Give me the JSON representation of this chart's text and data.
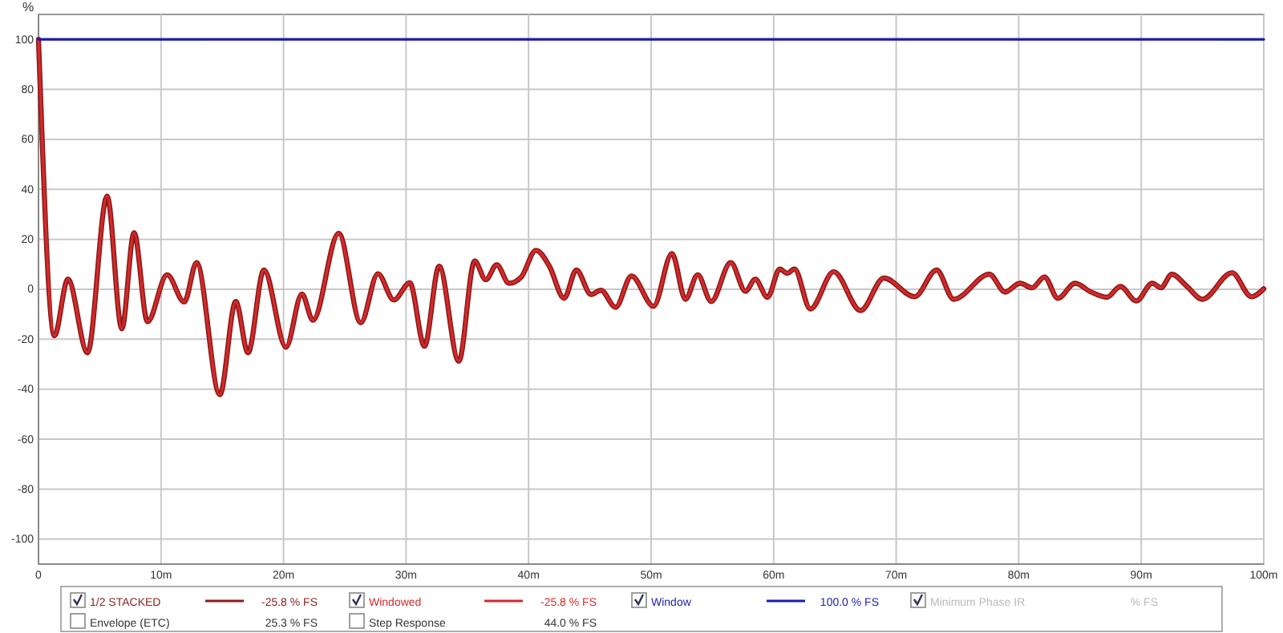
{
  "chart_data": {
    "type": "line",
    "ylabel": "%",
    "xlim": [
      0,
      100
    ],
    "ylim": [
      -110,
      110
    ],
    "xticks": [
      0,
      {
        "value": 10,
        "label": "10m"
      },
      {
        "value": 20,
        "label": "20m"
      },
      {
        "value": 30,
        "label": "30m"
      },
      {
        "value": 40,
        "label": "40m"
      },
      {
        "value": 50,
        "label": "50m"
      },
      {
        "value": 60,
        "label": "60m"
      },
      {
        "value": 70,
        "label": "70m"
      },
      {
        "value": 80,
        "label": "80m"
      },
      {
        "value": 90,
        "label": "90m"
      },
      {
        "value": 100,
        "label": "100m"
      }
    ],
    "yticks": [
      -100,
      -80,
      -60,
      -40,
      -20,
      0,
      20,
      40,
      60,
      80,
      100
    ],
    "grid": true,
    "legend": "bottom",
    "marker": "none",
    "line_style": "solid",
    "x": [
      0,
      1.3,
      2.4,
      4.0,
      5.6,
      6.8,
      7.8,
      8.9,
      10.5,
      11.9,
      12.9,
      14.8,
      16.1,
      17.1,
      18.4,
      20.2,
      21.5,
      22.4,
      24.5,
      26.3,
      27.7,
      29.0,
      30.3,
      31.5,
      32.7,
      34.3,
      35.6,
      36.5,
      37.4,
      38.4,
      39.4,
      40.6,
      41.7,
      42.9,
      43.9,
      45.1,
      45.9,
      47.1,
      48.4,
      50.2,
      51.7,
      52.8,
      53.8,
      54.9,
      56.5,
      57.7,
      58.5,
      59.5,
      60.5,
      61.1,
      61.7,
      63.0,
      64.9,
      67.1,
      69.0,
      71.5,
      73.3,
      74.7,
      77.6,
      78.9,
      80.1,
      81.1,
      82.1,
      83.2,
      84.6,
      85.9,
      87.2,
      88.3,
      89.6,
      90.9,
      91.6,
      92.5,
      93.7,
      95.0,
      97.4,
      99.0,
      100
    ],
    "series": [
      {
        "name": "1/2 STACKED",
        "color": "#8b1a1a",
        "values": [
          100,
          -18.6,
          4,
          -25.4,
          37.3,
          -15.8,
          22.6,
          -13,
          5.8,
          -5.1,
          10.7,
          -42.2,
          -4.9,
          -25.4,
          7.7,
          -23.2,
          -1.9,
          -12.4,
          22.4,
          -13.4,
          6.2,
          -4.3,
          2.6,
          -22.8,
          9.2,
          -28.8,
          11.3,
          3.8,
          9.8,
          2.4,
          4.9,
          15.6,
          9.2,
          -3.6,
          7.7,
          -2.1,
          -0.4,
          -7.2,
          5.3,
          -6.8,
          14.3,
          -4,
          5.8,
          -4.9,
          10.7,
          -0.8,
          4,
          -3.2,
          8.1,
          6.4,
          8.1,
          -7.9,
          7,
          -8.5,
          4.5,
          -3,
          7.7,
          -4,
          6,
          -1.1,
          2.4,
          0.6,
          4.9,
          -3.6,
          2.4,
          -1.1,
          -3.2,
          1.1,
          -4.7,
          2.4,
          0.6,
          6,
          1.3,
          -4,
          6.6,
          -3,
          0.2
        ]
      },
      {
        "name": "Windowed",
        "color": "#d42a2a",
        "values": [
          100,
          -18.6,
          4,
          -25.4,
          37.3,
          -15.8,
          22.6,
          -13,
          5.8,
          -5.1,
          10.7,
          -42.2,
          -4.9,
          -25.4,
          7.7,
          -23.2,
          -1.9,
          -12.4,
          22.4,
          -13.4,
          6.2,
          -4.3,
          2.6,
          -22.8,
          9.2,
          -28.8,
          11.3,
          3.8,
          9.8,
          2.4,
          4.9,
          15.6,
          9.2,
          -3.6,
          7.7,
          -2.1,
          -0.4,
          -7.2,
          5.3,
          -6.8,
          14.3,
          -4,
          5.8,
          -4.9,
          10.7,
          -0.8,
          4,
          -3.2,
          8.1,
          6.4,
          8.1,
          -7.9,
          7,
          -8.5,
          4.5,
          -3,
          7.7,
          -4,
          6,
          -1.1,
          2.4,
          0.6,
          4.9,
          -3.6,
          2.4,
          -1.1,
          -3.2,
          1.1,
          -4.7,
          2.4,
          0.6,
          6,
          1.3,
          -4,
          6.6,
          -3,
          0.2
        ]
      },
      {
        "name": "Window",
        "color": "#1a1ab0",
        "x": [
          0,
          100
        ],
        "values": [
          100,
          100
        ]
      }
    ],
    "annotations": [
      "-25.8 % FS",
      "-25.8 % FS",
      "100.0 % FS",
      "Minimum Phase IR",
      "% FS",
      "Envelope (ETC)",
      "25.3 % FS",
      "Step Response",
      "44.0 % FS"
    ]
  }
}
